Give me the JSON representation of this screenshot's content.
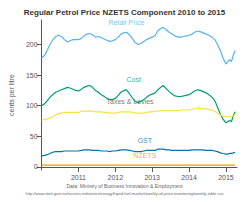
{
  "chart_data": {
    "type": "line",
    "title": "Regular Petrol Price NZETS Component 2010 to 2015",
    "ylabel": "cents per litre",
    "footnotes": [
      "Data: Ministry of Business Innovation & Employment",
      "http://www.meit.govt.nz/sectors-industries/energy/liquid-fuel-market/weekly-oil-price-monitoring/weekly-table.csv"
    ],
    "xlim": [
      2010.0,
      2015.3
    ],
    "ylim": [
      -5,
      240
    ],
    "xticks": [
      2011,
      2012,
      2013,
      2014,
      2015
    ],
    "yticks": [
      0,
      50,
      100,
      150,
      200
    ],
    "grid": false,
    "series": [
      {
        "name": "Retail Price",
        "color": "#56b4e9",
        "x": [
          2010.0,
          2010.08,
          2010.15,
          2010.23,
          2010.3,
          2010.38,
          2010.46,
          2010.54,
          2010.62,
          2010.7,
          2010.77,
          2010.85,
          2010.92,
          2011.0,
          2011.08,
          2011.15,
          2011.23,
          2011.3,
          2011.38,
          2011.46,
          2011.54,
          2011.62,
          2011.7,
          2011.77,
          2011.85,
          2011.92,
          2012.0,
          2012.08,
          2012.15,
          2012.23,
          2012.3,
          2012.38,
          2012.46,
          2012.54,
          2012.62,
          2012.7,
          2012.77,
          2012.85,
          2012.92,
          2013.0,
          2013.08,
          2013.15,
          2013.23,
          2013.3,
          2013.38,
          2013.46,
          2013.54,
          2013.62,
          2013.7,
          2013.77,
          2013.85,
          2013.92,
          2014.0,
          2014.08,
          2014.15,
          2014.23,
          2014.3,
          2014.38,
          2014.46,
          2014.54,
          2014.62,
          2014.7,
          2014.77,
          2014.85,
          2014.92,
          2015.0,
          2015.05,
          2015.1,
          2015.15,
          2015.2,
          2015.25
        ],
        "values": [
          178,
          182,
          190,
          200,
          207,
          213,
          215,
          213,
          208,
          204,
          206,
          208,
          208,
          208,
          210,
          214,
          217,
          218,
          216,
          212,
          213,
          211,
          209,
          207,
          205,
          206,
          208,
          212,
          217,
          219,
          220,
          216,
          210,
          203,
          200,
          202,
          205,
          208,
          210,
          212,
          215,
          222,
          226,
          228,
          224,
          220,
          217,
          214,
          212,
          212,
          213,
          214,
          215,
          217,
          220,
          222,
          221,
          219,
          217,
          215,
          212,
          208,
          200,
          190,
          178,
          168,
          172,
          175,
          172,
          183,
          190
        ]
      },
      {
        "name": "Cost",
        "color": "#009e73",
        "x": [
          2010.0,
          2010.08,
          2010.15,
          2010.23,
          2010.3,
          2010.38,
          2010.46,
          2010.54,
          2010.62,
          2010.7,
          2010.77,
          2010.85,
          2010.92,
          2011.0,
          2011.08,
          2011.15,
          2011.23,
          2011.3,
          2011.38,
          2011.46,
          2011.54,
          2011.62,
          2011.7,
          2011.77,
          2011.85,
          2011.92,
          2012.0,
          2012.08,
          2012.15,
          2012.23,
          2012.3,
          2012.38,
          2012.46,
          2012.54,
          2012.62,
          2012.7,
          2012.77,
          2012.85,
          2012.92,
          2013.0,
          2013.08,
          2013.15,
          2013.23,
          2013.3,
          2013.38,
          2013.46,
          2013.54,
          2013.62,
          2013.7,
          2013.77,
          2013.85,
          2013.92,
          2014.0,
          2014.08,
          2014.15,
          2014.23,
          2014.3,
          2014.38,
          2014.46,
          2014.54,
          2014.62,
          2014.7,
          2014.77,
          2014.85,
          2014.92,
          2015.0,
          2015.05,
          2015.1,
          2015.15,
          2015.2,
          2015.25
        ],
        "values": [
          100,
          103,
          108,
          114,
          118,
          122,
          124,
          126,
          128,
          130,
          129,
          127,
          125,
          124,
          127,
          130,
          132,
          133,
          130,
          125,
          122,
          118,
          115,
          112,
          110,
          110,
          112,
          117,
          122,
          125,
          126,
          120,
          113,
          107,
          105,
          107,
          110,
          114,
          117,
          119,
          121,
          126,
          130,
          133,
          128,
          123,
          119,
          116,
          115,
          115,
          116,
          117,
          118,
          121,
          124,
          126,
          125,
          123,
          121,
          118,
          114,
          108,
          98,
          86,
          78,
          72,
          74,
          76,
          74,
          84,
          90
        ]
      },
      {
        "name": "Taxes & Levies",
        "color": "#f0e442",
        "x": [
          2010.0,
          2010.08,
          2010.15,
          2010.23,
          2010.3,
          2010.38,
          2010.46,
          2010.54,
          2010.62,
          2010.7,
          2010.77,
          2010.85,
          2010.92,
          2011.0,
          2011.08,
          2011.15,
          2011.23,
          2011.3,
          2011.38,
          2011.46,
          2011.54,
          2011.62,
          2011.7,
          2011.77,
          2011.85,
          2011.92,
          2012.0,
          2012.08,
          2012.15,
          2012.23,
          2012.3,
          2012.38,
          2012.46,
          2012.54,
          2012.62,
          2012.7,
          2012.77,
          2012.85,
          2012.92,
          2013.0,
          2013.08,
          2013.15,
          2013.23,
          2013.3,
          2013.38,
          2013.46,
          2013.54,
          2013.62,
          2013.7,
          2013.77,
          2013.85,
          2013.92,
          2014.0,
          2014.08,
          2014.15,
          2014.23,
          2014.3,
          2014.38,
          2014.46,
          2014.54,
          2014.62,
          2014.7,
          2014.77,
          2014.85,
          2014.92,
          2015.0,
          2015.05,
          2015.1,
          2015.15,
          2015.2,
          2015.25
        ],
        "values": [
          76,
          78,
          78,
          80,
          82,
          85,
          87,
          88,
          89,
          89,
          89,
          89,
          89,
          89,
          91,
          91,
          91,
          91,
          91,
          90,
          90,
          90,
          89,
          89,
          88,
          88,
          88,
          89,
          90,
          90,
          90,
          90,
          89,
          88,
          88,
          88,
          88,
          89,
          90,
          90,
          91,
          91,
          92,
          92,
          92,
          92,
          92,
          92,
          92,
          93,
          93,
          93,
          93,
          94,
          95,
          96,
          96,
          95,
          95,
          94,
          93,
          91,
          88,
          85,
          83,
          82,
          82,
          82,
          82,
          84,
          85
        ]
      },
      {
        "name": "GST",
        "color": "#0072b2",
        "x": [
          2010.0,
          2010.08,
          2010.15,
          2010.23,
          2010.3,
          2010.38,
          2010.46,
          2010.54,
          2010.62,
          2010.7,
          2010.77,
          2010.85,
          2010.92,
          2011.0,
          2011.08,
          2011.15,
          2011.23,
          2011.3,
          2011.38,
          2011.46,
          2011.54,
          2011.62,
          2011.7,
          2011.77,
          2011.85,
          2011.92,
          2012.0,
          2012.08,
          2012.15,
          2012.23,
          2012.3,
          2012.38,
          2012.46,
          2012.54,
          2012.62,
          2012.7,
          2012.77,
          2012.85,
          2012.92,
          2013.0,
          2013.08,
          2013.15,
          2013.23,
          2013.3,
          2013.38,
          2013.46,
          2013.54,
          2013.62,
          2013.7,
          2013.77,
          2013.85,
          2013.92,
          2014.0,
          2014.08,
          2014.15,
          2014.23,
          2014.3,
          2014.38,
          2014.46,
          2014.54,
          2014.62,
          2014.7,
          2014.77,
          2014.85,
          2014.92,
          2015.0,
          2015.05,
          2015.1,
          2015.15,
          2015.2,
          2015.25
        ],
        "values": [
          18,
          19,
          20,
          22,
          24,
          25,
          25,
          25,
          26,
          26,
          26,
          26,
          26,
          26,
          27,
          28,
          28,
          28,
          27,
          27,
          27,
          26,
          26,
          26,
          25,
          26,
          26,
          27,
          28,
          28,
          28,
          27,
          26,
          25,
          25,
          25,
          26,
          27,
          27,
          27,
          27,
          29,
          29,
          29,
          28,
          28,
          27,
          27,
          27,
          27,
          27,
          27,
          27,
          28,
          28,
          28,
          28,
          28,
          27,
          27,
          27,
          26,
          25,
          23,
          22,
          21,
          21,
          22,
          22,
          23,
          24
        ]
      },
      {
        "name": "NZETS",
        "color": "#e69f00",
        "x": [
          2010.0,
          2010.5,
          2011.0,
          2011.5,
          2012.0,
          2012.5,
          2013.0,
          2013.5,
          2014.0,
          2014.5,
          2015.0,
          2015.25
        ],
        "values": [
          3,
          3,
          3,
          3,
          3,
          3,
          3,
          3,
          3,
          3,
          3,
          3
        ]
      }
    ],
    "annotations": [
      {
        "text": "Retail Price",
        "x": 2012.3,
        "y": 228,
        "color": "#56b4e9"
      },
      {
        "text": "Cost",
        "x": 2012.5,
        "y": 136,
        "color": "#009e73"
      },
      {
        "text": "Taxes & Levies",
        "x": 2012.4,
        "y": 100,
        "color": "#555555"
      },
      {
        "text": "GST",
        "x": 2012.8,
        "y": 36,
        "color": "#0072b2"
      },
      {
        "text": "NZETS",
        "x": 2012.8,
        "y": 11,
        "color": "#e69f00"
      }
    ]
  }
}
